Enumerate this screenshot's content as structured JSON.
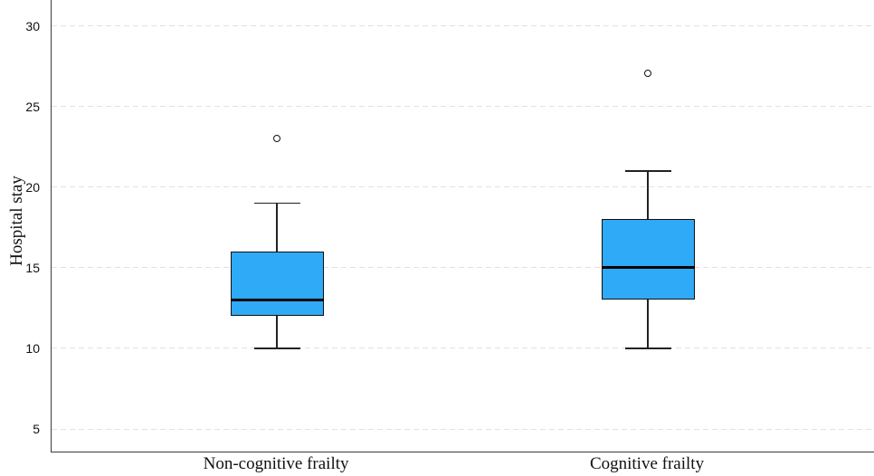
{
  "chart_data": {
    "type": "boxplot",
    "title": "",
    "xlabel": "",
    "ylabel": "Hospital stay",
    "ylim": [
      3.6,
      31.6
    ],
    "yticks": [
      5,
      10,
      15,
      20,
      25,
      30
    ],
    "grid": "horizontal dashed gridlines at each y tick",
    "legend": "none",
    "categories": [
      "Non-cognitive frailty",
      "Cognitive frailty"
    ],
    "series": [
      {
        "category": "Non-cognitive frailty",
        "whisker_low": 10,
        "q1": 12,
        "median": 13,
        "q3": 16,
        "whisker_high": 19,
        "outliers": [
          23
        ]
      },
      {
        "category": "Cognitive frailty",
        "whisker_low": 10,
        "q1": 13,
        "median": 15,
        "q3": 18,
        "whisker_high": 21,
        "outliers": [
          27
        ]
      }
    ],
    "colors": {
      "box_fill": "#2FAAF7",
      "box_border": "#111111",
      "median": "#000000",
      "whisker": "#222222",
      "gridline": "#e1e1e1",
      "axis": "#3a3a3a",
      "outlier_stroke": "#111111",
      "background": "#ffffff"
    }
  }
}
